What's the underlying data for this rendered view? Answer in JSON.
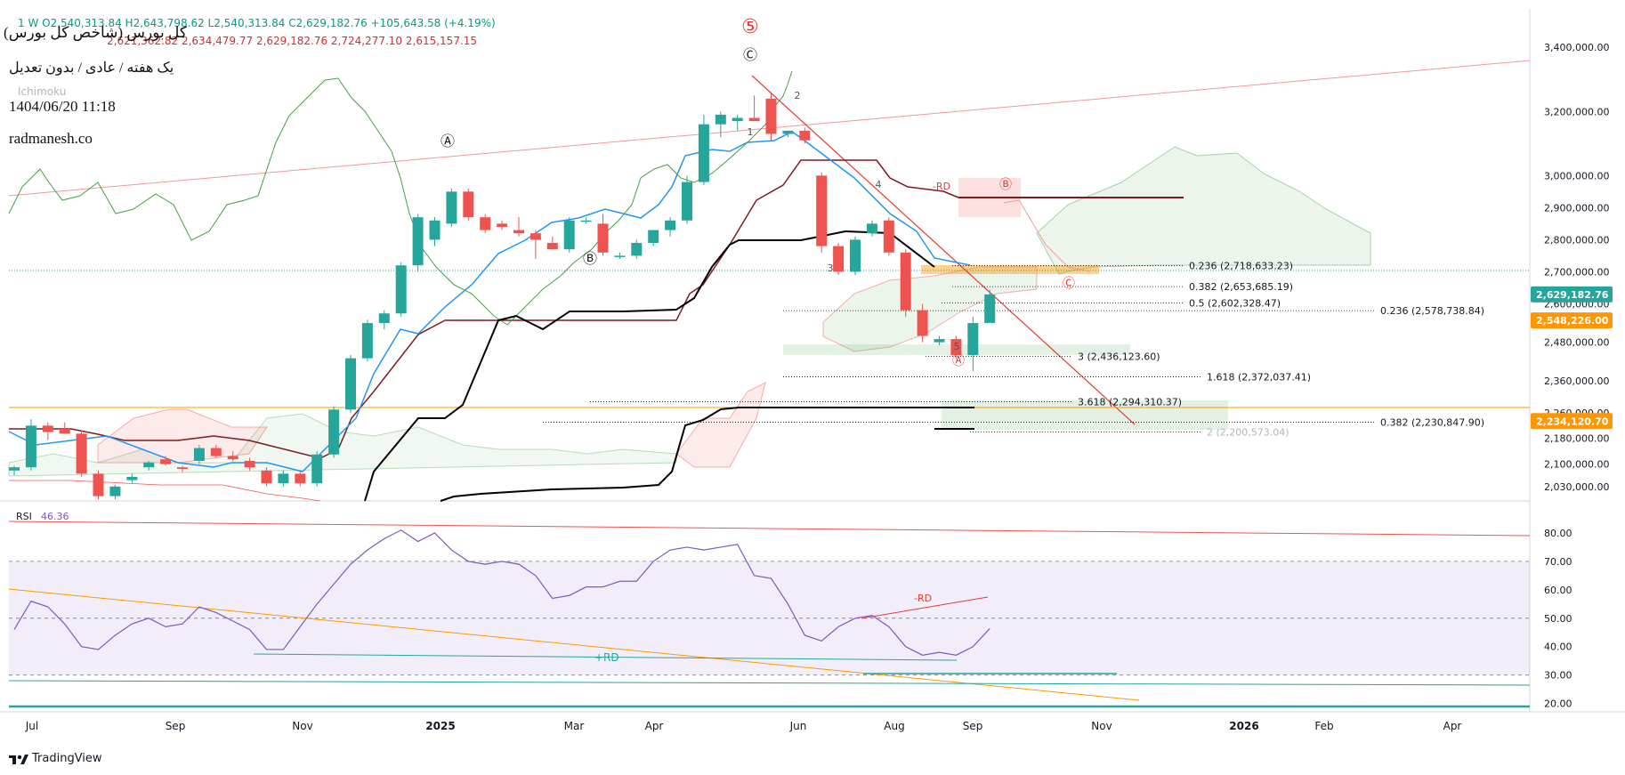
{
  "header": {
    "title_fa": "کل بورس (شاخص کل بورس)",
    "subtitle_fa": "یک هفته / عادی / بدون تعدیل",
    "datetime": "1404/06/20 11:18",
    "site": "radmanesh.co",
    "ohlc_line1": "1  W  O2,540,313.84 H2,643,798.62 L2,540,313.84 C2,629,182.76 +105,643.58 (+4.19%)",
    "ohlc_line2": "2,621,362.82 2,634,479.77 2,629,182.76 2,724,277.10 2,615,157.15",
    "indicator_name": "Ichimoku"
  },
  "footer": {
    "brand": "TradingView"
  },
  "colors": {
    "bull": "#26a69a",
    "bear": "#ef5350",
    "tenkan": "#2196f3",
    "kijun": "#801922",
    "chikou": "#43a047",
    "rsi": "#7e57c2",
    "fib": "#000000",
    "orange": "#ff9800"
  },
  "chart_data": [
    {
      "type": "candlestick",
      "title": "",
      "x_ticks": [
        "Jul",
        "Sep",
        "Nov",
        "2025",
        "Mar",
        "Apr",
        "Jun",
        "Aug",
        "Sep",
        "Nov",
        "2026",
        "Feb",
        "Apr"
      ],
      "y_ticks": [
        "3,400,000.00",
        "3,200,000.00",
        "3,000,000.00",
        "2,900,000.00",
        "2,800,000.00",
        "2,700,000.00",
        "2,600,000.00",
        "2,480,000.00",
        "2,360,000.00",
        "2,260,000.00",
        "2,180,000.00",
        "2,100,000.00",
        "2,030,000.00"
      ],
      "ylim": [
        1985000,
        3520000
      ],
      "price_labels": [
        {
          "value": 2629182.76,
          "text": "2,629,182.76",
          "color": "#26a69a"
        },
        {
          "value": 2548226.0,
          "text": "2,548,226.00",
          "color": "#ff9800"
        },
        {
          "value": 2234120.7,
          "text": "2,234,120.70",
          "color": "#ff9800"
        }
      ],
      "candles": [
        [
          2080000,
          2095000,
          2065000,
          2090000
        ],
        [
          2090000,
          2240000,
          2080000,
          2220000
        ],
        [
          2220000,
          2230000,
          2175000,
          2200000
        ],
        [
          2210000,
          2230000,
          2200000,
          2195000
        ],
        [
          2195000,
          2205000,
          2060000,
          2070000
        ],
        [
          2070000,
          2080000,
          1990000,
          2000000
        ],
        [
          2000000,
          2035000,
          1990000,
          2030000
        ],
        [
          2050000,
          2070000,
          2040000,
          2060000
        ],
        [
          2090000,
          2110000,
          2080000,
          2105000
        ],
        [
          2115000,
          2125000,
          2095000,
          2100000
        ],
        [
          2090000,
          2095000,
          2075000,
          2085000
        ],
        [
          2110000,
          2160000,
          2100000,
          2150000
        ],
        [
          2150000,
          2160000,
          2120000,
          2125000
        ],
        [
          2125000,
          2140000,
          2110000,
          2115000
        ],
        [
          2110000,
          2120000,
          2080000,
          2090000
        ],
        [
          2080000,
          2090000,
          2030000,
          2040000
        ],
        [
          2040000,
          2080000,
          2030000,
          2070000
        ],
        [
          2070000,
          2080000,
          2030000,
          2040000
        ],
        [
          2040000,
          2140000,
          2030000,
          2130000
        ],
        [
          2130000,
          2280000,
          2120000,
          2270000
        ],
        [
          2270000,
          2440000,
          2260000,
          2430000
        ],
        [
          2430000,
          2550000,
          2420000,
          2540000
        ],
        [
          2540000,
          2580000,
          2520000,
          2570000
        ],
        [
          2570000,
          2730000,
          2560000,
          2720000
        ],
        [
          2720000,
          2880000,
          2700000,
          2870000
        ],
        [
          2800000,
          2870000,
          2780000,
          2860000
        ],
        [
          2850000,
          2960000,
          2840000,
          2950000
        ],
        [
          2950000,
          2960000,
          2860000,
          2870000
        ],
        [
          2870000,
          2880000,
          2820000,
          2830000
        ],
        [
          2850000,
          2860000,
          2830000,
          2840000
        ],
        [
          2830000,
          2870000,
          2810000,
          2820000
        ],
        [
          2820000,
          2830000,
          2740000,
          2800000
        ],
        [
          2790000,
          2810000,
          2770000,
          2770000
        ],
        [
          2770000,
          2870000,
          2760000,
          2860000
        ],
        [
          2860000,
          2870000,
          2850000,
          2860000
        ],
        [
          2850000,
          2880000,
          2750000,
          2760000
        ],
        [
          2750000,
          2760000,
          2740000,
          2750000
        ],
        [
          2750000,
          2800000,
          2740000,
          2790000
        ],
        [
          2790000,
          2820000,
          2780000,
          2830000
        ],
        [
          2830000,
          2870000,
          2810000,
          2860000
        ],
        [
          2860000,
          3000000,
          2850000,
          2980000
        ],
        [
          2980000,
          3190000,
          2970000,
          3160000
        ],
        [
          3160000,
          3200000,
          3120000,
          3190000
        ],
        [
          3170000,
          3190000,
          3140000,
          3180000
        ],
        [
          3180000,
          3250000,
          3170000,
          3170000
        ],
        [
          3240000,
          3260000,
          3110000,
          3130000
        ],
        [
          3130000,
          3140000,
          3120000,
          3140000
        ],
        [
          3140000,
          3150000,
          3100000,
          3110000
        ],
        [
          3000000,
          3010000,
          2760000,
          2780000
        ],
        [
          2780000,
          2790000,
          2690000,
          2700000
        ],
        [
          2700000,
          2810000,
          2690000,
          2800000
        ],
        [
          2820000,
          2860000,
          2810000,
          2850000
        ],
        [
          2860000,
          2870000,
          2750000,
          2760000
        ],
        [
          2760000,
          2770000,
          2560000,
          2580000
        ],
        [
          2580000,
          2600000,
          2480000,
          2500000
        ],
        [
          2480000,
          2500000,
          2470000,
          2490000
        ],
        [
          2490000,
          2500000,
          2430000,
          2440000
        ],
        [
          2440000,
          2560000,
          2390000,
          2540000
        ],
        [
          2540313.84,
          2643798.62,
          2540313.84,
          2629182.76
        ]
      ],
      "fib_levels": [
        {
          "label": "0.236 (2,718,633.23)",
          "value": 2718633.23
        },
        {
          "label": "0.382 (2,653,685.19)",
          "value": 2653685.19
        },
        {
          "label": "0.5 (2,602,328.47)",
          "value": 2602328.47
        },
        {
          "label": "0.236 (2,578,738.84)",
          "value": 2578738.84
        },
        {
          "label": "3 (2,436,123.60)",
          "value": 2436123.6
        },
        {
          "label": "1.618 (2,372,037.41)",
          "value": 2372037.41
        },
        {
          "label": "3.618 (2,294,310.37)",
          "value": 2294310.37
        },
        {
          "label": "0.382 (2,230,847.90)",
          "value": 2230847.9
        },
        {
          "label": "2 (2,200,573.04)",
          "value": 2200573.04
        }
      ],
      "wave_labels": [
        "Ⓐ",
        "Ⓑ",
        "Ⓒ",
        "⑤",
        "Ⓐ",
        "Ⓑ",
        "Ⓒ",
        "1",
        "2",
        "3",
        "4",
        "5",
        "-RD"
      ]
    },
    {
      "type": "line",
      "title": "RSI",
      "series": [
        {
          "name": "RSI",
          "last": "46.36",
          "values": [
            46,
            56,
            54,
            48,
            40,
            39,
            44,
            48,
            50,
            47,
            48,
            54,
            52,
            49,
            46,
            39,
            39,
            47,
            55,
            62,
            69,
            74,
            78,
            81,
            77,
            80,
            74,
            70,
            69,
            70,
            69,
            65,
            57,
            58,
            61,
            61,
            63,
            63,
            70,
            74,
            75,
            74,
            75,
            76,
            65,
            64,
            55,
            44,
            42,
            47,
            50,
            51,
            47,
            40,
            37,
            38,
            37,
            40,
            46.36
          ]
        }
      ],
      "y_ticks": [
        "80.00",
        "70.00",
        "60.00",
        "50.00",
        "40.00",
        "30.00",
        "20.00"
      ],
      "ylim": [
        18,
        85
      ],
      "annotations": [
        "+RD",
        "-RD"
      ]
    }
  ]
}
